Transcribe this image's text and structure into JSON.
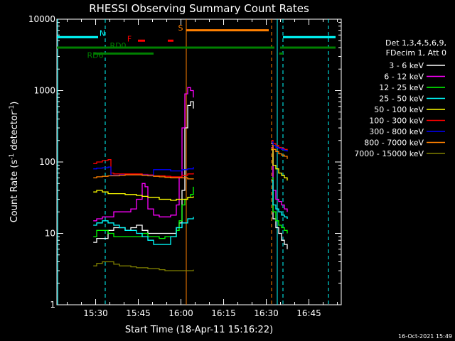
{
  "chart_data": {
    "type": "line",
    "title": "RHESSI Observing Summary Count Rates",
    "xlabel": "Start Time (18-Apr-11 15:16:22)",
    "ylabel_main": "Count Rate (s",
    "ylabel_sup1": "-1",
    "ylabel_mid": " detector",
    "ylabel_sup2": "-1",
    "ylabel_end": ")",
    "x_unit": "minutes after 15:16:22",
    "xlim": [
      0,
      100
    ],
    "ylim": [
      1,
      10000
    ],
    "y_scale": "log",
    "x_ticks": [
      {
        "label": "15:30",
        "v": 13.63
      },
      {
        "label": "15:45",
        "v": 28.63
      },
      {
        "label": "16:00",
        "v": 43.63
      },
      {
        "label": "16:15",
        "v": 58.63
      },
      {
        "label": "16:30",
        "v": 73.63
      },
      {
        "label": "16:45",
        "v": 88.63
      }
    ],
    "y_ticks": [
      {
        "label": "1",
        "v": 1
      },
      {
        "label": "10",
        "v": 10
      },
      {
        "label": "100",
        "v": 100
      },
      {
        "label": "1000",
        "v": 1000
      },
      {
        "label": "10000",
        "v": 10000
      }
    ],
    "legend_header": [
      "Det 1,3,4,5,6,9,",
      "FDecim 1, Att 0"
    ],
    "legend_placement": "right",
    "series": [
      {
        "name": "3 - 6 keV",
        "color": "#ffffff",
        "x": [
          12.8,
          14,
          16,
          18,
          20,
          22,
          24,
          26,
          28,
          30,
          32,
          34,
          36,
          38,
          40,
          42,
          43,
          44,
          45,
          46,
          47,
          48
        ],
        "y": [
          7.5,
          8.5,
          8.5,
          11,
          12,
          12,
          11,
          12,
          13,
          11,
          10,
          10,
          10,
          10,
          10,
          12,
          14,
          40,
          300,
          620,
          700,
          560
        ]
      },
      {
        "name": "6 - 12 keV",
        "color": "#ff00ff",
        "x": [
          12.8,
          14,
          16,
          18,
          20,
          22,
          24,
          26,
          28,
          30,
          31,
          32,
          34,
          36,
          38,
          40,
          42,
          43,
          44,
          45,
          46,
          47,
          48
        ],
        "y": [
          15,
          16,
          17,
          17,
          20,
          20,
          20,
          22,
          30,
          50,
          45,
          22,
          18,
          17,
          17,
          18,
          25,
          60,
          300,
          900,
          1100,
          1000,
          800
        ]
      },
      {
        "name": "12 - 25 keV",
        "color": "#00ff00",
        "x": [
          12.8,
          14,
          16,
          18,
          20,
          22,
          24,
          26,
          28,
          30,
          32,
          34,
          36,
          38,
          40,
          42,
          43,
          44,
          45,
          46,
          47,
          48
        ],
        "y": [
          9,
          11,
          11,
          10,
          9,
          9,
          9,
          9,
          9,
          10,
          9,
          9,
          8.5,
          9,
          9,
          11,
          15,
          25,
          30,
          32,
          35,
          45
        ]
      },
      {
        "name": "25 - 50 keV",
        "color": "#00ffff",
        "x": [
          12.8,
          14,
          16,
          18,
          20,
          22,
          24,
          26,
          28,
          30,
          32,
          34,
          36,
          38,
          40,
          42,
          44,
          46,
          48
        ],
        "y": [
          13,
          14,
          15,
          14,
          13,
          12,
          11,
          11,
          10,
          9,
          8,
          7,
          7,
          7,
          9,
          12,
          14,
          16,
          17
        ]
      },
      {
        "name": "50 - 100 keV",
        "color": "#ffff00",
        "x": [
          12.8,
          14,
          16,
          18,
          20,
          22,
          24,
          26,
          28,
          30,
          32,
          34,
          36,
          38,
          40,
          42,
          44,
          46,
          48
        ],
        "y": [
          38,
          40,
          38,
          36,
          36,
          36,
          35,
          35,
          34,
          33,
          32,
          32,
          30,
          30,
          29,
          30,
          30,
          32,
          33
        ]
      },
      {
        "name": "100 - 300 keV",
        "color": "#ff0000",
        "x": [
          12.8,
          14,
          16,
          18,
          19,
          20,
          22,
          24,
          26,
          28,
          30,
          32,
          34,
          36,
          38,
          40,
          42,
          44,
          46,
          48
        ],
        "y": [
          95,
          100,
          105,
          108,
          70,
          68,
          68,
          68,
          68,
          68,
          67,
          66,
          64,
          64,
          63,
          62,
          62,
          65,
          68,
          70
        ]
      },
      {
        "name": "300 - 800 keV",
        "color": "#0000ff",
        "x": [
          12.8,
          14,
          16,
          18,
          19,
          20,
          22,
          24,
          26,
          28,
          30,
          32,
          34,
          36,
          38,
          40,
          42,
          44,
          46,
          48
        ],
        "y": [
          80,
          82,
          83,
          85,
          65,
          65,
          66,
          66,
          66,
          66,
          66,
          65,
          78,
          78,
          78,
          75,
          75,
          78,
          80,
          85
        ]
      },
      {
        "name": "800 - 7000 keV",
        "color": "#ff8000",
        "x": [
          12.8,
          14,
          16,
          18,
          20,
          22,
          24,
          26,
          28,
          30,
          32,
          34,
          36,
          38,
          40,
          42,
          44,
          46,
          48
        ],
        "y": [
          60,
          62,
          63,
          64,
          64,
          65,
          66,
          66,
          66,
          65,
          64,
          63,
          62,
          61,
          60,
          60,
          60,
          58,
          57
        ]
      },
      {
        "name": "7000 - 15000 keV",
        "color": "#808000",
        "x": [
          12.8,
          14,
          16,
          18,
          20,
          22,
          24,
          26,
          28,
          30,
          32,
          34,
          36,
          38,
          40,
          42,
          44,
          46,
          48
        ],
        "y": [
          3.5,
          3.8,
          4,
          4,
          3.7,
          3.5,
          3.5,
          3.4,
          3.3,
          3.3,
          3.2,
          3.2,
          3.1,
          3,
          3,
          3,
          3,
          3,
          3.1
        ]
      }
    ],
    "series2": [
      {
        "color": "#ffffff",
        "x": [
          75.5,
          76,
          77,
          78,
          79,
          80,
          81
        ],
        "y": [
          180,
          16,
          12,
          10,
          8,
          7,
          6
        ]
      },
      {
        "color": "#ff00ff",
        "x": [
          75.5,
          76,
          77,
          78,
          79,
          80,
          81
        ],
        "y": [
          160,
          40,
          30,
          28,
          25,
          22,
          20
        ]
      },
      {
        "color": "#00ff00",
        "x": [
          75.5,
          76,
          77,
          78,
          79,
          80,
          81
        ],
        "y": [
          60,
          20,
          15,
          13,
          12,
          11,
          10
        ]
      },
      {
        "color": "#00ffff",
        "x": [
          75.5,
          76,
          77,
          78,
          79,
          80,
          81
        ],
        "y": [
          55,
          25,
          22,
          20,
          18,
          17,
          16
        ]
      },
      {
        "color": "#ffff00",
        "x": [
          75.5,
          76,
          77,
          78,
          79,
          80,
          81
        ],
        "y": [
          150,
          90,
          80,
          70,
          65,
          60,
          55
        ]
      },
      {
        "color": "#ff0000",
        "x": [
          75.5,
          76,
          77,
          78,
          79,
          80,
          81
        ],
        "y": [
          200,
          180,
          170,
          160,
          155,
          150,
          145
        ]
      },
      {
        "color": "#0000ff",
        "x": [
          75.5,
          76,
          77,
          78,
          79,
          80,
          81
        ],
        "y": [
          190,
          170,
          160,
          155,
          150,
          145,
          140
        ]
      },
      {
        "color": "#ff8000",
        "x": [
          75.5,
          76,
          77,
          78,
          79,
          80,
          81
        ],
        "y": [
          170,
          150,
          140,
          130,
          125,
          120,
          110
        ]
      }
    ],
    "flag_bars": [
      {
        "label": "N",
        "color": "#00ffff",
        "y": 5600,
        "segments": [
          [
            0,
            14.5
          ],
          [
            79.5,
            98
          ]
        ],
        "label_x": 16,
        "label_y": 6400
      },
      {
        "label": "S",
        "color": "#ff8000",
        "y": 7000,
        "segments": [
          [
            45.5,
            74.5
          ]
        ],
        "label_x": 43.5,
        "label_y": 7600
      },
      {
        "label": "RD0",
        "color": "#008000",
        "y": 4000,
        "segments": [
          [
            0,
            76.5
          ],
          [
            78.5,
            98
          ]
        ],
        "label_x": 21.5,
        "label_y": 4300
      },
      {
        "label": "RD6",
        "color": "#008000",
        "y": 3300,
        "segments": [
          [
            13,
            34
          ],
          [
            78.2,
            79.5
          ]
        ],
        "label_x": 13.5,
        "label_y": 3150
      },
      {
        "label": "F",
        "color": "#ff0000",
        "y": 5000,
        "segments": [
          [
            28.5,
            31
          ],
          [
            39,
            41
          ]
        ],
        "label_x": 25.5,
        "label_y": 5300
      }
    ],
    "vlines": [
      {
        "x": 0.3,
        "color": "#00ffff",
        "style": "solid"
      },
      {
        "x": 17,
        "color": "#00ffff",
        "style": "dashed"
      },
      {
        "x": 45.5,
        "color": "#ff8000",
        "style": "solid"
      },
      {
        "x": 75.5,
        "color": "#ff8000",
        "style": "dashed"
      },
      {
        "x": 77.5,
        "color": "#00ffff",
        "style": "solid"
      },
      {
        "x": 79.5,
        "color": "#00ffff",
        "style": "dashed"
      },
      {
        "x": 95.5,
        "color": "#00ffff",
        "style": "dashed"
      }
    ]
  },
  "timestamp": "16-Oct-2021 15:49"
}
